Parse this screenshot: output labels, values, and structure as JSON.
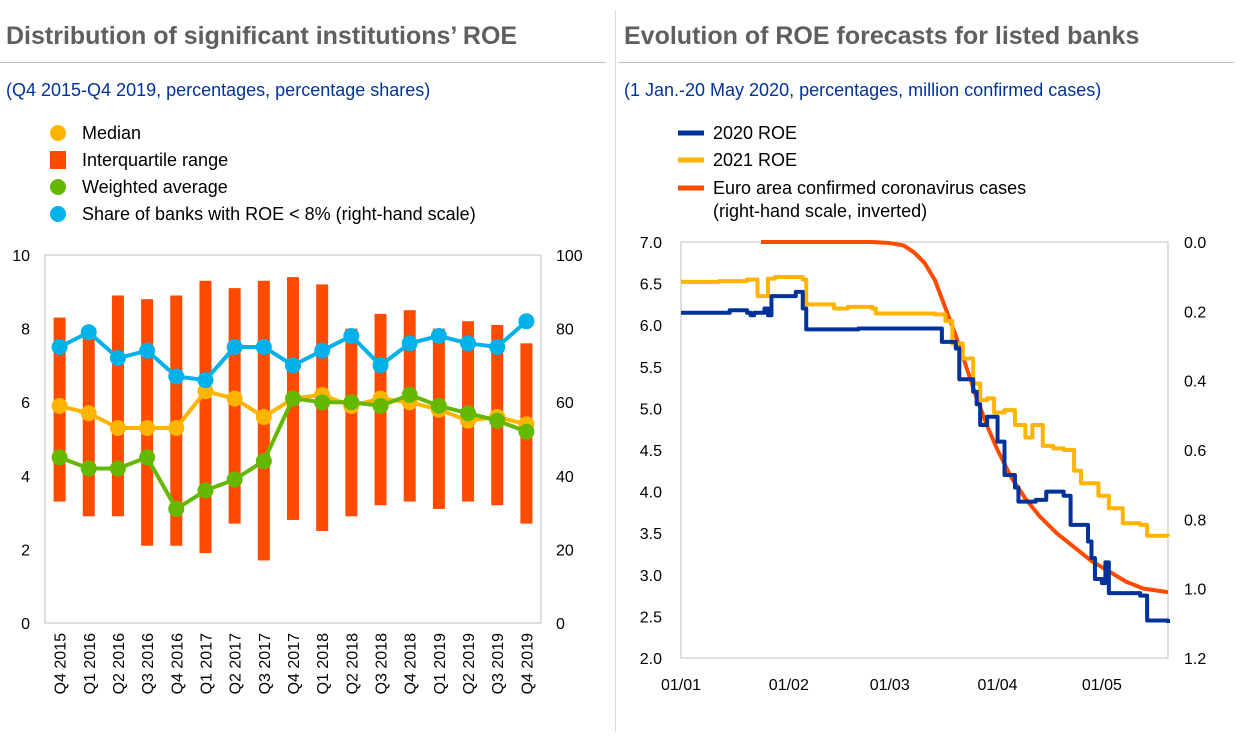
{
  "left": {
    "title": "Distribution of significant institutions’ ROE",
    "subtitle": "(Q4 2015-Q4 2019, percentages, percentage shares)",
    "chart_data": {
      "type": "bar",
      "categories": [
        "Q4 2015",
        "Q1 2016",
        "Q2 2016",
        "Q3 2016",
        "Q4 2016",
        "Q1 2017",
        "Q2 2017",
        "Q3 2017",
        "Q4 2017",
        "Q1 2018",
        "Q2 2018",
        "Q3 2018",
        "Q4 2018",
        "Q1 2019",
        "Q2 2019",
        "Q3 2019",
        "Q4 2019"
      ],
      "ylim": [
        0,
        10
      ],
      "y2lim": [
        0,
        100
      ],
      "yticks": [
        "0",
        "2",
        "4",
        "6",
        "8",
        "10"
      ],
      "y2ticks": [
        "0",
        "20",
        "40",
        "60",
        "80",
        "100"
      ],
      "legend_position": "top-left",
      "grid": false,
      "series": [
        {
          "name": "Median",
          "kind": "line-markers",
          "color": "#FFB400",
          "axis": "left",
          "values": [
            5.9,
            5.7,
            5.3,
            5.3,
            5.3,
            6.3,
            6.1,
            5.6,
            6.1,
            6.2,
            5.9,
            6.1,
            6.0,
            5.8,
            5.5,
            5.6,
            5.4
          ]
        },
        {
          "name": "Interquartile  range",
          "kind": "range-bar",
          "color": "#FF4B00",
          "axis": "left",
          "low": [
            3.3,
            2.9,
            2.9,
            2.1,
            2.1,
            1.9,
            2.7,
            1.7,
            2.8,
            2.5,
            2.9,
            3.2,
            3.3,
            3.1,
            3.3,
            3.2,
            2.7
          ],
          "high": [
            8.3,
            8.0,
            8.9,
            8.8,
            8.9,
            9.3,
            9.1,
            9.3,
            9.4,
            9.2,
            8.0,
            8.4,
            8.5,
            8.0,
            8.2,
            8.1,
            7.6
          ]
        },
        {
          "name": "Weighted average",
          "kind": "line-markers",
          "color": "#65B800",
          "axis": "left",
          "values": [
            4.5,
            4.2,
            4.2,
            4.5,
            3.1,
            3.6,
            3.9,
            4.4,
            6.1,
            6.0,
            6.0,
            5.9,
            6.2,
            5.9,
            5.7,
            5.5,
            5.2
          ]
        },
        {
          "name": "Share of banks with ROE < 8% (right-hand scale)",
          "kind": "line-markers",
          "color": "#00B1EA",
          "axis": "right",
          "values": [
            75,
            79,
            72,
            74,
            67,
            66,
            75,
            75,
            70,
            74,
            78,
            70,
            76,
            78,
            76,
            75,
            82
          ]
        }
      ]
    }
  },
  "right": {
    "title": "Evolution of ROE forecasts for listed banks",
    "subtitle": "(1 Jan.-20 May 2020, percentages, million confirmed cases)",
    "chart_data": {
      "type": "line",
      "x_ticks": [
        "01/01",
        "01/02",
        "01/03",
        "01/04",
        "01/05"
      ],
      "xlim": [
        "2020-01-01",
        "2020-05-20"
      ],
      "ylim": [
        2.0,
        7.0
      ],
      "yticks": [
        "2.0",
        "2.5",
        "3.0",
        "3.5",
        "4.0",
        "4.5",
        "5.0",
        "5.5",
        "6.0",
        "6.5",
        "7.0"
      ],
      "y2lim": [
        0.0,
        1.2
      ],
      "y2_inverted": true,
      "y2ticks": [
        "0.0",
        "0.2",
        "0.4",
        "0.6",
        "0.8",
        "1.0",
        "1.2"
      ],
      "legend_position": "top-left",
      "grid": false,
      "series": [
        {
          "name": "2020 ROE",
          "color": "#003299",
          "axis": "left",
          "points": [
            [
              "2020-01-01",
              6.15
            ],
            [
              "2020-01-14",
              6.15
            ],
            [
              "2020-01-15",
              6.18
            ],
            [
              "2020-01-20",
              6.15
            ],
            [
              "2020-01-21",
              6.12
            ],
            [
              "2020-01-22",
              6.15
            ],
            [
              "2020-01-25",
              6.2
            ],
            [
              "2020-01-26",
              6.12
            ],
            [
              "2020-01-27",
              6.35
            ],
            [
              "2020-02-02",
              6.35
            ],
            [
              "2020-02-03",
              6.4
            ],
            [
              "2020-02-05",
              6.2
            ],
            [
              "2020-02-06",
              5.95
            ],
            [
              "2020-02-20",
              5.95
            ],
            [
              "2020-02-21",
              5.96
            ],
            [
              "2020-03-15",
              5.96
            ],
            [
              "2020-03-16",
              5.8
            ],
            [
              "2020-03-20",
              5.72
            ],
            [
              "2020-03-21",
              5.35
            ],
            [
              "2020-03-25",
              5.2
            ],
            [
              "2020-03-26",
              5.05
            ],
            [
              "2020-03-27",
              4.8
            ],
            [
              "2020-03-29",
              4.9
            ],
            [
              "2020-04-01",
              4.6
            ],
            [
              "2020-04-03",
              4.2
            ],
            [
              "2020-04-06",
              4.05
            ],
            [
              "2020-04-07",
              3.88
            ],
            [
              "2020-04-12",
              3.9
            ],
            [
              "2020-04-15",
              4.0
            ],
            [
              "2020-04-20",
              3.95
            ],
            [
              "2020-04-22",
              3.6
            ],
            [
              "2020-04-27",
              3.4
            ],
            [
              "2020-04-28",
              3.2
            ],
            [
              "2020-04-29",
              2.95
            ],
            [
              "2020-05-01",
              2.9
            ],
            [
              "2020-05-02",
              3.15
            ],
            [
              "2020-05-03",
              2.78
            ],
            [
              "2020-05-12",
              2.75
            ],
            [
              "2020-05-14",
              2.45
            ],
            [
              "2020-05-20",
              2.42
            ]
          ]
        },
        {
          "name": "2021 ROE",
          "color": "#FFB400",
          "axis": "left",
          "points": [
            [
              "2020-01-01",
              6.52
            ],
            [
              "2020-01-12",
              6.53
            ],
            [
              "2020-01-20",
              6.55
            ],
            [
              "2020-01-22",
              6.55
            ],
            [
              "2020-01-23",
              6.35
            ],
            [
              "2020-01-25",
              6.35
            ],
            [
              "2020-01-26",
              6.56
            ],
            [
              "2020-01-28",
              6.58
            ],
            [
              "2020-02-05",
              6.55
            ],
            [
              "2020-02-06",
              6.25
            ],
            [
              "2020-02-14",
              6.2
            ],
            [
              "2020-02-18",
              6.22
            ],
            [
              "2020-02-25",
              6.2
            ],
            [
              "2020-02-26",
              6.14
            ],
            [
              "2020-03-14",
              6.13
            ],
            [
              "2020-03-17",
              6.05
            ],
            [
              "2020-03-19",
              5.78
            ],
            [
              "2020-03-22",
              5.6
            ],
            [
              "2020-03-25",
              5.3
            ],
            [
              "2020-03-27",
              5.1
            ],
            [
              "2020-03-29",
              5.12
            ],
            [
              "2020-03-31",
              4.95
            ],
            [
              "2020-04-03",
              4.98
            ],
            [
              "2020-04-06",
              4.8
            ],
            [
              "2020-04-09",
              4.65
            ],
            [
              "2020-04-11",
              4.8
            ],
            [
              "2020-04-14",
              4.55
            ],
            [
              "2020-04-17",
              4.52
            ],
            [
              "2020-04-20",
              4.5
            ],
            [
              "2020-04-23",
              4.25
            ],
            [
              "2020-04-25",
              4.1
            ],
            [
              "2020-04-30",
              3.95
            ],
            [
              "2020-05-03",
              3.8
            ],
            [
              "2020-05-07",
              3.62
            ],
            [
              "2020-05-12",
              3.6
            ],
            [
              "2020-05-14",
              3.47
            ],
            [
              "2020-05-20",
              3.46
            ]
          ]
        },
        {
          "name": "Euro area confirmed coronavirus cases (right-hand scale, inverted)",
          "color": "#FF4B00",
          "axis": "right",
          "points": [
            [
              "2020-01-24",
              0.0
            ],
            [
              "2020-02-25",
              0.0
            ],
            [
              "2020-03-01",
              0.003
            ],
            [
              "2020-03-05",
              0.01
            ],
            [
              "2020-03-08",
              0.03
            ],
            [
              "2020-03-11",
              0.06
            ],
            [
              "2020-03-14",
              0.11
            ],
            [
              "2020-03-17",
              0.19
            ],
            [
              "2020-03-20",
              0.27
            ],
            [
              "2020-03-23",
              0.36
            ],
            [
              "2020-03-26",
              0.45
            ],
            [
              "2020-03-29",
              0.53
            ],
            [
              "2020-04-01",
              0.6
            ],
            [
              "2020-04-05",
              0.68
            ],
            [
              "2020-04-09",
              0.74
            ],
            [
              "2020-04-13",
              0.79
            ],
            [
              "2020-04-18",
              0.84
            ],
            [
              "2020-04-23",
              0.88
            ],
            [
              "2020-04-28",
              0.92
            ],
            [
              "2020-05-03",
              0.95
            ],
            [
              "2020-05-08",
              0.98
            ],
            [
              "2020-05-13",
              1.0
            ],
            [
              "2020-05-20",
              1.01
            ]
          ]
        }
      ]
    }
  }
}
